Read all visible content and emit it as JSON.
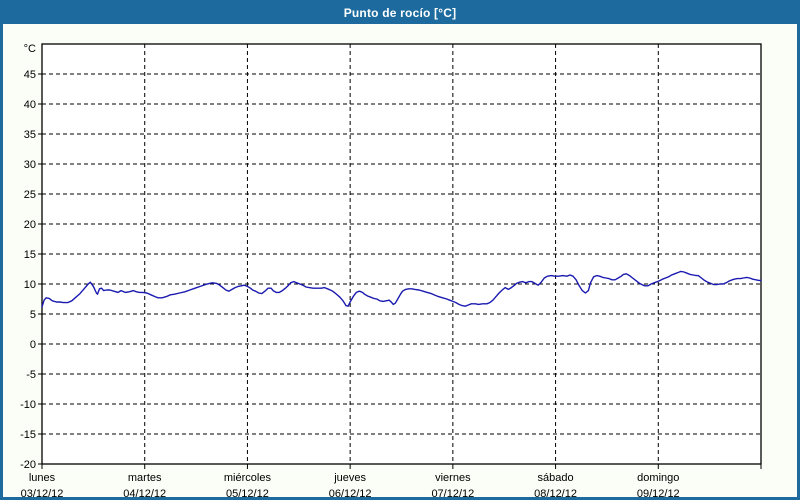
{
  "window": {
    "title": "Punto de rocío [°C]",
    "title_bar_color": "#1d6a9e",
    "border_color": "#1d6a9e",
    "background_color": "#fbfdf7"
  },
  "chart_data": {
    "type": "line",
    "title": "Punto de rocío [°C]",
    "unit_label": "°C",
    "grid": "dashed",
    "legend": "none",
    "plot_background": "#ffffff",
    "line_color": "#1a1ab0",
    "axis_color": "#000000",
    "y_axis": {
      "min": -20,
      "max": 50,
      "tick_min": -20,
      "tick_max": 45,
      "tick_step": 5,
      "tick_labels": [
        "-20",
        "-15",
        "-10",
        "-5",
        "0",
        "5",
        "10",
        "15",
        "20",
        "25",
        "30",
        "35",
        "40",
        "45"
      ]
    },
    "x_axis": {
      "range_days": [
        0,
        7
      ],
      "days": [
        {
          "name": "lunes",
          "date": "03/12/12"
        },
        {
          "name": "martes",
          "date": "04/12/12"
        },
        {
          "name": "miércoles",
          "date": "05/12/12"
        },
        {
          "name": "jueves",
          "date": "06/12/12"
        },
        {
          "name": "viernes",
          "date": "07/12/12"
        },
        {
          "name": "sábado",
          "date": "08/12/12"
        },
        {
          "name": "domingo",
          "date": "09/12/12"
        }
      ]
    },
    "series": [
      {
        "name": "Punto de rocío",
        "points": [
          [
            0,
            6.2
          ],
          [
            0.02,
            7.3
          ],
          [
            0.04,
            7.7
          ],
          [
            0.07,
            7.6
          ],
          [
            0.1,
            7.2
          ],
          [
            0.14,
            7.0
          ],
          [
            0.17,
            7.0
          ],
          [
            0.21,
            6.9
          ],
          [
            0.25,
            6.9
          ],
          [
            0.29,
            7.2
          ],
          [
            0.33,
            7.8
          ],
          [
            0.37,
            8.4
          ],
          [
            0.41,
            9.2
          ],
          [
            0.45,
            10.0
          ],
          [
            0.47,
            10.3
          ],
          [
            0.5,
            9.6
          ],
          [
            0.53,
            8.5
          ],
          [
            0.54,
            8.3
          ],
          [
            0.56,
            9.2
          ],
          [
            0.58,
            9.3
          ],
          [
            0.6,
            8.9
          ],
          [
            0.63,
            9.0
          ],
          [
            0.66,
            9.0
          ],
          [
            0.7,
            8.8
          ],
          [
            0.74,
            8.6
          ],
          [
            0.77,
            8.9
          ],
          [
            0.81,
            8.6
          ],
          [
            0.85,
            8.7
          ],
          [
            0.89,
            8.9
          ],
          [
            0.92,
            8.7
          ],
          [
            0.95,
            8.6
          ],
          [
            0.98,
            8.6
          ],
          [
            1.02,
            8.5
          ],
          [
            1.06,
            8.2
          ],
          [
            1.1,
            7.9
          ],
          [
            1.13,
            7.7
          ],
          [
            1.17,
            7.7
          ],
          [
            1.21,
            7.9
          ],
          [
            1.25,
            8.2
          ],
          [
            1.29,
            8.3
          ],
          [
            1.34,
            8.5
          ],
          [
            1.39,
            8.7
          ],
          [
            1.44,
            9.0
          ],
          [
            1.49,
            9.3
          ],
          [
            1.54,
            9.6
          ],
          [
            1.59,
            9.9
          ],
          [
            1.63,
            10.1
          ],
          [
            1.66,
            10.2
          ],
          [
            1.7,
            10.1
          ],
          [
            1.73,
            9.8
          ],
          [
            1.76,
            9.4
          ],
          [
            1.79,
            9.0
          ],
          [
            1.82,
            8.8
          ],
          [
            1.85,
            9.1
          ],
          [
            1.88,
            9.4
          ],
          [
            1.91,
            9.6
          ],
          [
            1.94,
            9.7
          ],
          [
            1.97,
            9.8
          ],
          [
            2.0,
            9.6
          ],
          [
            2.03,
            9.3
          ],
          [
            2.05,
            9.0
          ],
          [
            2.08,
            8.8
          ],
          [
            2.11,
            8.5
          ],
          [
            2.14,
            8.4
          ],
          [
            2.17,
            8.8
          ],
          [
            2.2,
            9.3
          ],
          [
            2.23,
            9.3
          ],
          [
            2.25,
            8.9
          ],
          [
            2.28,
            8.6
          ],
          [
            2.31,
            8.6
          ],
          [
            2.34,
            8.9
          ],
          [
            2.37,
            9.3
          ],
          [
            2.4,
            9.8
          ],
          [
            2.42,
            10.2
          ],
          [
            2.45,
            10.4
          ],
          [
            2.48,
            10.2
          ],
          [
            2.51,
            10.0
          ],
          [
            2.54,
            9.8
          ],
          [
            2.57,
            9.5
          ],
          [
            2.6,
            9.4
          ],
          [
            2.64,
            9.3
          ],
          [
            2.68,
            9.3
          ],
          [
            2.72,
            9.3
          ],
          [
            2.75,
            9.4
          ],
          [
            2.78,
            9.2
          ],
          [
            2.82,
            8.9
          ],
          [
            2.86,
            8.4
          ],
          [
            2.9,
            7.8
          ],
          [
            2.93,
            7.2
          ],
          [
            2.96,
            6.4
          ],
          [
            2.98,
            6.3
          ],
          [
            3.0,
            7.0
          ],
          [
            3.03,
            7.9
          ],
          [
            3.06,
            8.6
          ],
          [
            3.09,
            8.8
          ],
          [
            3.12,
            8.6
          ],
          [
            3.14,
            8.3
          ],
          [
            3.17,
            8.0
          ],
          [
            3.2,
            7.8
          ],
          [
            3.23,
            7.6
          ],
          [
            3.26,
            7.5
          ],
          [
            3.29,
            7.2
          ],
          [
            3.32,
            7.1
          ],
          [
            3.35,
            7.2
          ],
          [
            3.38,
            7.3
          ],
          [
            3.4,
            7.0
          ],
          [
            3.42,
            6.6
          ],
          [
            3.44,
            6.8
          ],
          [
            3.46,
            7.4
          ],
          [
            3.49,
            8.3
          ],
          [
            3.51,
            8.8
          ],
          [
            3.54,
            9.1
          ],
          [
            3.57,
            9.2
          ],
          [
            3.6,
            9.2
          ],
          [
            3.63,
            9.1
          ],
          [
            3.67,
            9.0
          ],
          [
            3.71,
            8.8
          ],
          [
            3.75,
            8.6
          ],
          [
            3.79,
            8.4
          ],
          [
            3.83,
            8.1
          ],
          [
            3.86,
            7.9
          ],
          [
            3.9,
            7.7
          ],
          [
            3.94,
            7.5
          ],
          [
            3.97,
            7.3
          ],
          [
            4.0,
            7.1
          ],
          [
            4.03,
            6.9
          ],
          [
            4.06,
            6.6
          ],
          [
            4.09,
            6.4
          ],
          [
            4.12,
            6.3
          ],
          [
            4.15,
            6.5
          ],
          [
            4.18,
            6.7
          ],
          [
            4.22,
            6.7
          ],
          [
            4.25,
            6.6
          ],
          [
            4.29,
            6.7
          ],
          [
            4.33,
            6.7
          ],
          [
            4.36,
            6.9
          ],
          [
            4.39,
            7.3
          ],
          [
            4.42,
            7.9
          ],
          [
            4.45,
            8.5
          ],
          [
            4.48,
            9.0
          ],
          [
            4.51,
            9.4
          ],
          [
            4.54,
            9.1
          ],
          [
            4.57,
            9.4
          ],
          [
            4.6,
            9.8
          ],
          [
            4.62,
            10.1
          ],
          [
            4.65,
            10.3
          ],
          [
            4.68,
            10.4
          ],
          [
            4.71,
            10.2
          ],
          [
            4.74,
            10.4
          ],
          [
            4.77,
            10.4
          ],
          [
            4.8,
            10.1
          ],
          [
            4.83,
            9.8
          ],
          [
            4.86,
            10.3
          ],
          [
            4.89,
            11.0
          ],
          [
            4.92,
            11.3
          ],
          [
            4.96,
            11.4
          ],
          [
            4.99,
            11.3
          ],
          [
            5.03,
            11.3
          ],
          [
            5.07,
            11.4
          ],
          [
            5.11,
            11.3
          ],
          [
            5.14,
            11.5
          ],
          [
            5.17,
            11.3
          ],
          [
            5.2,
            10.7
          ],
          [
            5.23,
            9.7
          ],
          [
            5.26,
            8.9
          ],
          [
            5.29,
            8.5
          ],
          [
            5.32,
            8.9
          ],
          [
            5.34,
            10.2
          ],
          [
            5.37,
            11.2
          ],
          [
            5.4,
            11.4
          ],
          [
            5.43,
            11.3
          ],
          [
            5.46,
            11.1
          ],
          [
            5.49,
            11.0
          ],
          [
            5.52,
            10.9
          ],
          [
            5.55,
            10.7
          ],
          [
            5.58,
            10.7
          ],
          [
            5.61,
            11.0
          ],
          [
            5.64,
            11.3
          ],
          [
            5.66,
            11.6
          ],
          [
            5.69,
            11.7
          ],
          [
            5.72,
            11.4
          ],
          [
            5.75,
            11.0
          ],
          [
            5.78,
            10.6
          ],
          [
            5.81,
            10.2
          ],
          [
            5.84,
            9.9
          ],
          [
            5.87,
            9.7
          ],
          [
            5.9,
            9.7
          ],
          [
            5.93,
            10.0
          ],
          [
            5.96,
            10.2
          ],
          [
            5.99,
            10.4
          ],
          [
            6.02,
            10.6
          ],
          [
            6.04,
            10.8
          ],
          [
            6.07,
            11.0
          ],
          [
            6.1,
            11.2
          ],
          [
            6.13,
            11.5
          ],
          [
            6.16,
            11.7
          ],
          [
            6.19,
            11.9
          ],
          [
            6.22,
            12.1
          ],
          [
            6.25,
            12.0
          ],
          [
            6.28,
            11.8
          ],
          [
            6.31,
            11.6
          ],
          [
            6.34,
            11.5
          ],
          [
            6.37,
            11.4
          ],
          [
            6.39,
            11.4
          ],
          [
            6.42,
            11.0
          ],
          [
            6.45,
            10.6
          ],
          [
            6.48,
            10.3
          ],
          [
            6.51,
            10.1
          ],
          [
            6.54,
            9.9
          ],
          [
            6.57,
            9.9
          ],
          [
            6.6,
            10.0
          ],
          [
            6.63,
            10.0
          ],
          [
            6.66,
            10.2
          ],
          [
            6.69,
            10.5
          ],
          [
            6.72,
            10.7
          ],
          [
            6.74,
            10.8
          ],
          [
            6.77,
            10.9
          ],
          [
            6.8,
            10.9
          ],
          [
            6.83,
            11.0
          ],
          [
            6.86,
            11.1
          ],
          [
            6.89,
            11.0
          ],
          [
            6.92,
            10.8
          ],
          [
            6.95,
            10.7
          ],
          [
            6.98,
            10.6
          ],
          [
            7.0,
            10.6
          ]
        ]
      }
    ]
  }
}
